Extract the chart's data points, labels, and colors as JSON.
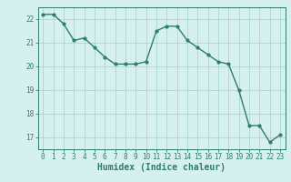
{
  "x": [
    0,
    1,
    2,
    3,
    4,
    5,
    6,
    7,
    8,
    9,
    10,
    11,
    12,
    13,
    14,
    15,
    16,
    17,
    18,
    19,
    20,
    21,
    22,
    23
  ],
  "y": [
    22.2,
    22.2,
    21.8,
    21.1,
    21.2,
    20.8,
    20.4,
    20.1,
    20.1,
    20.1,
    20.2,
    21.5,
    21.7,
    21.7,
    21.1,
    20.8,
    20.5,
    20.2,
    20.1,
    19.0,
    17.5,
    17.5,
    16.8,
    17.1
  ],
  "line_color": "#2e7d6e",
  "marker_color": "#2e7d6e",
  "bg_color": "#d6f0ee",
  "grid_color": "#a8d8d0",
  "xlabel": "Humidex (Indice chaleur)",
  "xlim": [
    -0.5,
    23.5
  ],
  "ylim": [
    16.5,
    22.5
  ],
  "yticks": [
    17,
    18,
    19,
    20,
    21,
    22
  ],
  "xticks": [
    0,
    1,
    2,
    3,
    4,
    5,
    6,
    7,
    8,
    9,
    10,
    11,
    12,
    13,
    14,
    15,
    16,
    17,
    18,
    19,
    20,
    21,
    22,
    23
  ],
  "tick_label_fontsize": 5.5,
  "xlabel_fontsize": 7.0,
  "line_width": 1.0,
  "marker_size": 2.0
}
